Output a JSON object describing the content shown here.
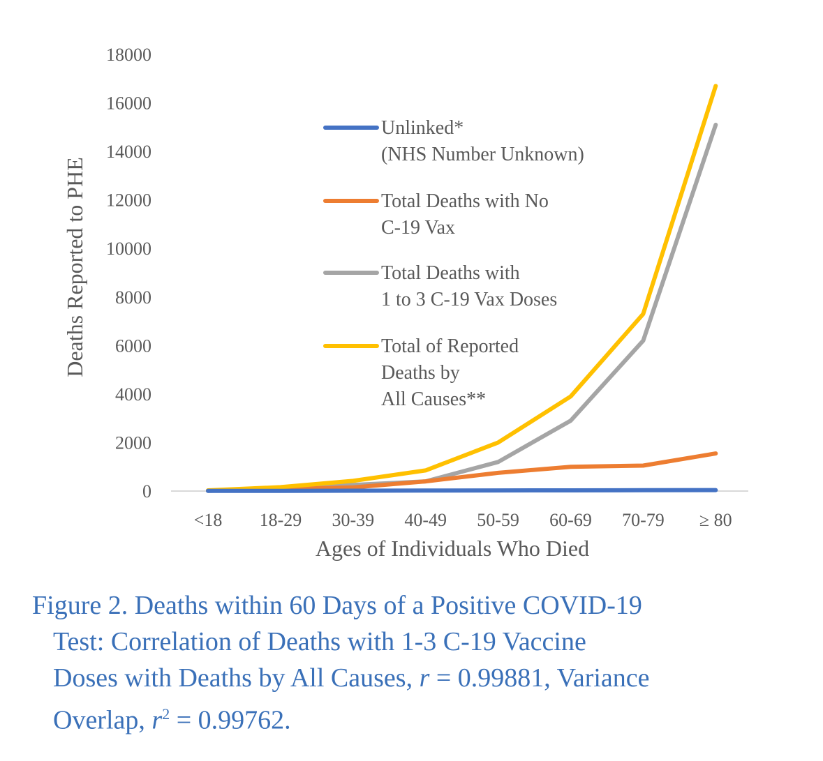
{
  "chart_data": {
    "type": "line",
    "categories": [
      "<18",
      "18-29",
      "30-39",
      "40-49",
      "50-59",
      "60-69",
      "70-79",
      "≥ 80"
    ],
    "xlabel": "Ages of Individuals Who Died",
    "ylabel": "Deaths Reported to PHE",
    "ylim": [
      0,
      18000
    ],
    "yticks": [
      0,
      2000,
      4000,
      6000,
      8000,
      10000,
      12000,
      14000,
      16000,
      18000
    ],
    "grid": false,
    "legend_position": "upper-middle",
    "series": [
      {
        "name": "Unlinked* (NHS Number Unknown)",
        "legend_lines": [
          "Unlinked*",
          "(NHS Number Unknown)"
        ],
        "color": "#4472c4",
        "values": [
          5,
          10,
          15,
          20,
          25,
          30,
          35,
          40
        ]
      },
      {
        "name": "Total Deaths with No C-19 Vax",
        "legend_lines": [
          "Total Deaths with No",
          "C-19 Vax"
        ],
        "color": "#ed7d31",
        "values": [
          20,
          80,
          150,
          400,
          750,
          1000,
          1050,
          1550
        ]
      },
      {
        "name": "Total Deaths with 1 to 3 C-19 Vax Doses",
        "legend_lines": [
          "Total Deaths with",
          "1 to 3 C-19 Vax Doses"
        ],
        "color": "#a5a5a5",
        "values": [
          10,
          90,
          250,
          400,
          1200,
          2900,
          6200,
          15100
        ]
      },
      {
        "name": "Total of Reported Deaths by All Causes**",
        "legend_lines": [
          "Total of Reported",
          "Deaths by",
          "All Causes**"
        ],
        "color": "#ffc000",
        "values": [
          30,
          160,
          420,
          850,
          2000,
          3900,
          7300,
          16700
        ]
      }
    ]
  },
  "caption": {
    "line1": "Figure 2. Deaths within 60 Days of a Positive COVID-19",
    "line2": "Test: Correlation of Deaths with 1-3 C-19 Vaccine",
    "line3_a": "Doses with Deaths by All Causes, ",
    "line3_r": "r",
    "line3_b": " = 0.99881, Variance",
    "line4_a": "Overlap, ",
    "line4_r": "r",
    "line4_sup": "2",
    "line4_b": " = 0.99762."
  }
}
